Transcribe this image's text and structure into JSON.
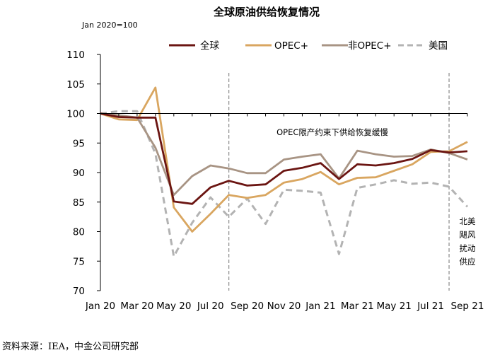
{
  "chart_data": {
    "type": "line",
    "title": "全球原油供给恢复情况",
    "unit_label": "Jan 2020=100",
    "x_tick_labels": [
      "Jan 20",
      "Mar 20",
      "May 20",
      "Jul 20",
      "Sep 20",
      "Nov 20",
      "Jan 21",
      "Mar 21",
      "May 21",
      "Jul 21",
      "Sep 21"
    ],
    "x": [
      "2020-01",
      "2020-02",
      "2020-03",
      "2020-04",
      "2020-05",
      "2020-06",
      "2020-07",
      "2020-08",
      "2020-09",
      "2020-10",
      "2020-11",
      "2020-12",
      "2021-01",
      "2021-02",
      "2021-03",
      "2021-04",
      "2021-05",
      "2021-06",
      "2021-07",
      "2021-08",
      "2021-09"
    ],
    "ylim": [
      70,
      110
    ],
    "y_ticks": [
      70,
      75,
      80,
      85,
      90,
      95,
      100,
      105,
      110
    ],
    "grid": false,
    "legend_position": "top",
    "series": [
      {
        "name": "全球",
        "color": "#6b1512",
        "dash": "solid",
        "values": [
          100,
          99.4,
          99.3,
          99.3,
          85.1,
          84.7,
          87.5,
          88.6,
          87.8,
          88.0,
          90.3,
          90.8,
          91.6,
          88.9,
          91.4,
          91.2,
          91.6,
          92.3,
          93.8,
          93.4,
          93.6
        ]
      },
      {
        "name": "OPEC+",
        "color": "#d9a660",
        "dash": "solid",
        "values": [
          100,
          99.0,
          98.9,
          104.4,
          84.1,
          80.0,
          83.0,
          86.2,
          85.7,
          86.2,
          88.3,
          88.9,
          90.1,
          88.0,
          89.1,
          89.2,
          90.3,
          91.4,
          93.5,
          93.6,
          95.2
        ]
      },
      {
        "name": "非OPEC+",
        "color": "#a89484",
        "dash": "solid",
        "values": [
          100,
          99.7,
          99.3,
          94.2,
          86.2,
          89.4,
          91.2,
          90.7,
          89.9,
          89.9,
          92.2,
          92.7,
          93.1,
          89.0,
          93.7,
          93.1,
          92.7,
          92.8,
          93.9,
          93.3,
          92.2
        ]
      },
      {
        "name": "美国",
        "color": "#b3b3b3",
        "dash": "dashed",
        "values": [
          100,
          100.4,
          100.4,
          93.2,
          75.8,
          81.5,
          85.8,
          82.5,
          85.6,
          81.3,
          87.1,
          86.9,
          86.6,
          76.2,
          87.4,
          88.0,
          88.7,
          88.1,
          88.3,
          87.6,
          84.2
        ]
      }
    ],
    "vertical_markers": [
      {
        "x": "2020-08"
      },
      {
        "x": "2021-08"
      }
    ],
    "annotations": [
      {
        "text": "OPEC限产约束下供给恢复缓慢",
        "lines": [
          "OPEC限产约束下供给恢复缓慢"
        ]
      },
      {
        "text": "北美飓风扰动供应",
        "lines": [
          "北美",
          "飓风",
          "扰动",
          "供应"
        ]
      }
    ]
  },
  "footer": {
    "source": "资料来源：IEA，中金公司研究部"
  }
}
